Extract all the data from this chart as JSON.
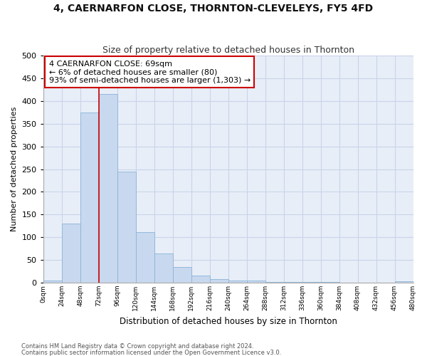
{
  "title": "4, CAERNARFON CLOSE, THORNTON-CLEVELEYS, FY5 4FD",
  "subtitle": "Size of property relative to detached houses in Thornton",
  "xlabel": "Distribution of detached houses by size in Thornton",
  "ylabel": "Number of detached properties",
  "footnote1": "Contains HM Land Registry data © Crown copyright and database right 2024.",
  "footnote2": "Contains public sector information licensed under the Open Government Licence v3.0.",
  "bar_values": [
    4,
    130,
    375,
    415,
    245,
    111,
    65,
    34,
    15,
    8,
    5,
    4,
    1,
    1,
    1,
    1,
    0,
    0,
    0,
    3
  ],
  "bin_labels": [
    "0sqm",
    "24sqm",
    "48sqm",
    "72sqm",
    "96sqm",
    "120sqm",
    "144sqm",
    "168sqm",
    "192sqm",
    "216sqm",
    "240sqm",
    "264sqm",
    "288sqm",
    "312sqm",
    "336sqm",
    "360sqm",
    "384sqm",
    "408sqm",
    "432sqm",
    "456sqm",
    "480sqm"
  ],
  "bar_color": "#c8d8ee",
  "bar_edge_color": "#8ab4d8",
  "grid_color": "#c8d4e8",
  "plot_bg_color": "#e8eef8",
  "fig_bg_color": "#ffffff",
  "vline_color": "#cc0000",
  "vline_x": 3,
  "annotation_text": "4 CAERNARFON CLOSE: 69sqm\n← 6% of detached houses are smaller (80)\n93% of semi-detached houses are larger (1,303) →",
  "annotation_box_color": "#ffffff",
  "annotation_box_edge": "#cc0000",
  "ylim": [
    0,
    500
  ],
  "yticks": [
    0,
    50,
    100,
    150,
    200,
    250,
    300,
    350,
    400,
    450,
    500
  ]
}
